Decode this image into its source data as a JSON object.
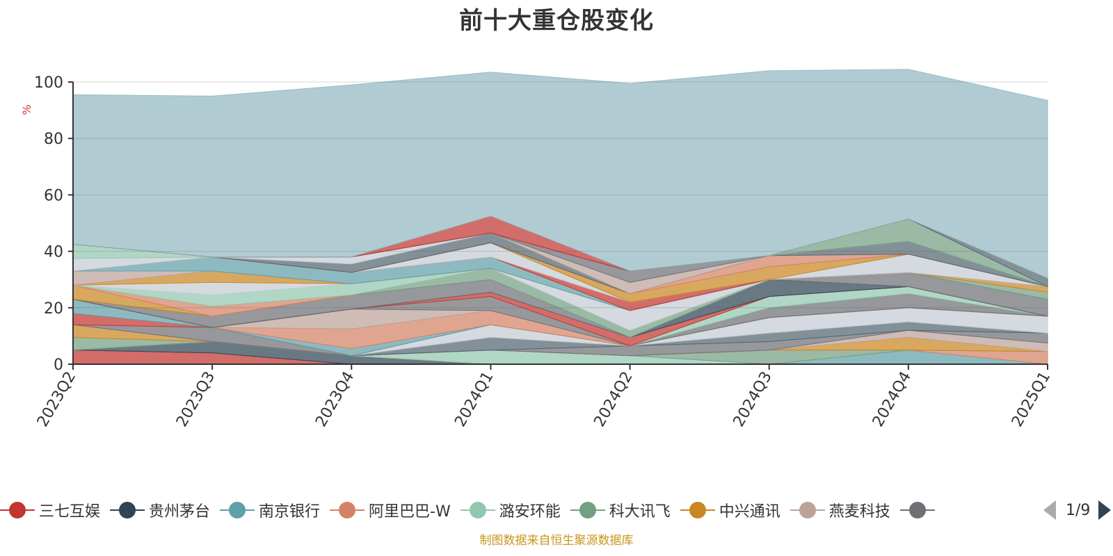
{
  "title": "前十大重仓股变化",
  "source": "制图数据来自恒生聚源数据库",
  "legend_page": "1/9",
  "chart_data": {
    "type": "area",
    "stacked": true,
    "ylabel": "%",
    "ylim": [
      0,
      100
    ],
    "yticks": [
      0,
      20,
      40,
      60,
      80,
      100
    ],
    "categories": [
      "2023Q2",
      "2023Q3",
      "2023Q4",
      "2024Q1",
      "2024Q2",
      "2024Q3",
      "2024Q4",
      "2025Q1"
    ],
    "grid": true,
    "legend_position": "bottom",
    "series": [
      {
        "name": "三七互娱",
        "color": "#c23531",
        "values": [
          5.0,
          4.0,
          0,
          0,
          0,
          0,
          0,
          0
        ]
      },
      {
        "name": "贵州茅台",
        "color": "#2f4554",
        "values": [
          0,
          4.0,
          3.0,
          0,
          0,
          0,
          0,
          0
        ]
      },
      {
        "name": "南京银行",
        "color": "#61a0a8",
        "values": [
          0,
          0,
          0,
          0,
          0,
          0,
          5.0,
          0
        ]
      },
      {
        "name": "阿里巴巴-W",
        "color": "#d48265",
        "values": [
          0,
          0,
          0,
          0,
          0,
          0,
          0,
          4.5
        ]
      },
      {
        "name": "潞安环能",
        "color": "#91c7ae",
        "values": [
          0,
          0,
          0,
          5.0,
          3.0,
          0,
          0,
          0
        ]
      },
      {
        "name": "科大讯飞",
        "color": "#749f83",
        "values": [
          4.5,
          0,
          0,
          0,
          0,
          5.0,
          0,
          0
        ]
      },
      {
        "name": "中兴通讯",
        "color": "#ca8622",
        "values": [
          4.5,
          0,
          0,
          0,
          0,
          0,
          4.5,
          0
        ]
      },
      {
        "name": "燕麦科技",
        "color": "#bda29a",
        "values": [
          0,
          0,
          0,
          0,
          0,
          0,
          2.5,
          3.0
        ]
      },
      {
        "name": "",
        "color": "#6e7074",
        "values": [
          0,
          5.0,
          0,
          0,
          3.5,
          3.0,
          0,
          3.5
        ]
      },
      {
        "name": "",
        "color": "#546570",
        "values": [
          0,
          0,
          0,
          4.5,
          0,
          3.0,
          3.0,
          0
        ]
      },
      {
        "name": "",
        "color": "#c4ccd3",
        "values": [
          0,
          0,
          0,
          4.5,
          0,
          5.5,
          5.0,
          6.0
        ]
      },
      {
        "name": "",
        "color": "#c23531",
        "values": [
          4.0,
          0,
          0,
          0,
          0,
          0,
          0,
          0
        ]
      },
      {
        "name": "",
        "color": "#61a0a8",
        "values": [
          5.0,
          0,
          2.5,
          0,
          0,
          0,
          0,
          0
        ]
      },
      {
        "name": "",
        "color": "#d48265",
        "values": [
          0,
          0,
          7.0,
          5.0,
          0,
          0,
          0,
          0
        ]
      },
      {
        "name": "",
        "color": "#bda29a",
        "values": [
          0,
          0,
          7.0,
          0,
          0,
          0,
          0,
          0
        ]
      },
      {
        "name": "",
        "color": "#6e7074",
        "values": [
          0,
          0,
          0,
          5.0,
          0,
          3.5,
          5.0,
          0
        ]
      },
      {
        "name": "",
        "color": "#91c7ae",
        "values": [
          0,
          0,
          0,
          0,
          0,
          4.0,
          2.5,
          0
        ]
      },
      {
        "name": "",
        "color": "#c23531",
        "values": [
          0,
          0,
          0,
          1.5,
          3.0,
          0,
          0,
          0
        ]
      },
      {
        "name": "",
        "color": "#2f4554",
        "values": [
          0,
          0,
          0,
          0,
          0,
          6.0,
          0,
          0
        ]
      },
      {
        "name": "",
        "color": "#6e7074",
        "values": [
          0,
          4.0,
          5.0,
          4.5,
          0,
          0,
          5.0,
          6.0
        ]
      },
      {
        "name": "",
        "color": "#749f83",
        "values": [
          0,
          0,
          0,
          4.0,
          2.5,
          0,
          0,
          2.5
        ]
      },
      {
        "name": "",
        "color": "#ca8622",
        "values": [
          5.0,
          0,
          0,
          0,
          0,
          0,
          0,
          2.0
        ]
      },
      {
        "name": "",
        "color": "#d48265",
        "values": [
          0,
          3.5,
          0,
          0,
          0,
          0,
          0,
          0
        ]
      },
      {
        "name": "",
        "color": "#91c7ae",
        "values": [
          0,
          4.0,
          4.0,
          0,
          0,
          0,
          0,
          0
        ]
      },
      {
        "name": "",
        "color": "#c4ccd3",
        "values": [
          0,
          4.5,
          0,
          0,
          7.0,
          0,
          0,
          0
        ]
      },
      {
        "name": "",
        "color": "#ca8622",
        "values": [
          0,
          4.0,
          0,
          0,
          0,
          0,
          0,
          0
        ]
      },
      {
        "name": "",
        "color": "#bda29a",
        "values": [
          5.0,
          0,
          0,
          0,
          0,
          0,
          0,
          0
        ]
      },
      {
        "name": "",
        "color": "#61a0a8",
        "values": [
          0,
          5.0,
          4.0,
          4.0,
          0,
          0,
          0,
          0
        ]
      },
      {
        "name": "",
        "color": "#c23531",
        "values": [
          0,
          0,
          0,
          0,
          3.0,
          0,
          0,
          0
        ]
      },
      {
        "name": "",
        "color": "#c4ccd3",
        "values": [
          4.5,
          0,
          0,
          5.0,
          0,
          0,
          6.5,
          0
        ]
      },
      {
        "name": "",
        "color": "#91c7ae",
        "values": [
          5.0,
          0,
          0,
          0,
          0,
          0,
          0,
          0
        ]
      },
      {
        "name": "",
        "color": "#ca8622",
        "values": [
          0,
          0,
          0,
          0,
          3.0,
          4.5,
          0,
          0
        ]
      },
      {
        "name": "",
        "color": "#d48265",
        "values": [
          0,
          0,
          0,
          0,
          0,
          4.0,
          0,
          0
        ]
      },
      {
        "name": "",
        "color": "#546570",
        "values": [
          0,
          0,
          3.0,
          3.5,
          0,
          0,
          4.5,
          0
        ]
      },
      {
        "name": "",
        "color": "#bda29a",
        "values": [
          0,
          0,
          0,
          0,
          4.0,
          0,
          0,
          0
        ]
      },
      {
        "name": "",
        "color": "#6e7074",
        "values": [
          0,
          0,
          0,
          0,
          4.0,
          0,
          0,
          0
        ]
      },
      {
        "name": "",
        "color": "#c4ccd3",
        "values": [
          0,
          0,
          2.5,
          0,
          0,
          0,
          0,
          0
        ]
      },
      {
        "name": "",
        "color": "#749f83",
        "values": [
          0,
          0,
          0,
          0,
          0,
          0,
          8.0,
          0
        ]
      },
      {
        "name": "",
        "color": "#546570",
        "values": [
          0,
          0,
          0,
          0,
          0,
          0,
          0,
          3.0
        ]
      },
      {
        "name": "",
        "color": "#c23531",
        "values": [
          0,
          0,
          0,
          6.0,
          0,
          0,
          0,
          0
        ]
      },
      {
        "name": "",
        "color": "#91b9c0",
        "values": [
          53.0,
          57.0,
          61.0,
          51.0,
          66.5,
          65.5,
          53.0,
          63.0
        ]
      }
    ]
  }
}
